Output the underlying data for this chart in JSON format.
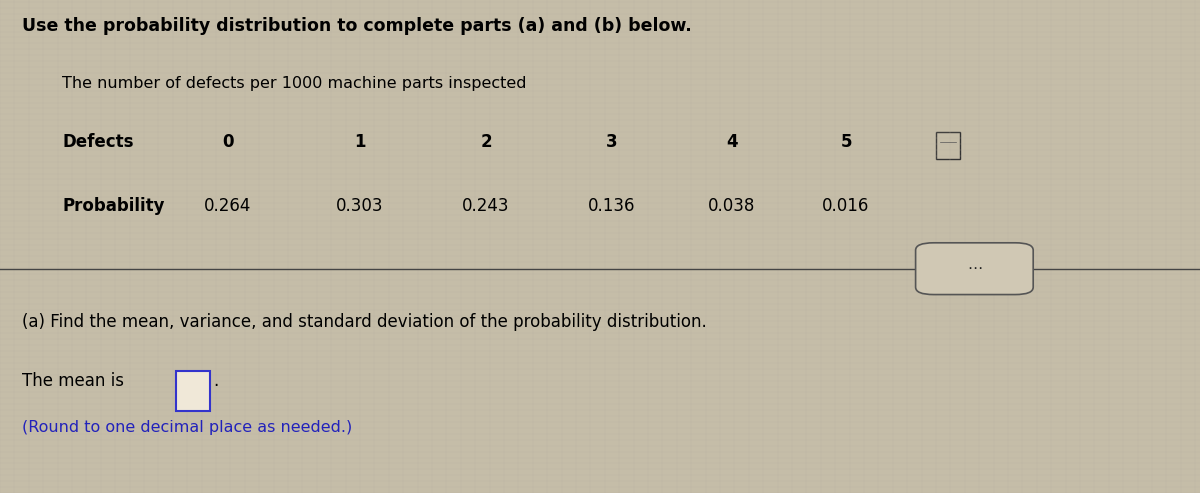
{
  "bg_color": "#c5bda8",
  "grid_color": "#b8b0a0",
  "header_text": "Use the probability distribution to complete parts (a) and (b) below.",
  "table_title": "The number of defects per 1000 machine parts inspected",
  "row1_label": "Defects",
  "row2_label": "Probability",
  "defects": [
    "0",
    "1",
    "2",
    "3",
    "4",
    "5"
  ],
  "probabilities": [
    "0.264",
    "0.303",
    "0.243",
    "0.136",
    "0.038",
    "0.016"
  ],
  "part_a_text": "(a) Find the mean, variance, and standard deviation of the probability distribution.",
  "mean_text": "The mean is",
  "round_text": "(Round to one decimal place as needed.)",
  "input_box_color": "#f0e8d8",
  "input_box_border": "#3333cc",
  "dots_btn_face": "#d0c8b4",
  "dots_btn_edge": "#555555",
  "blue_text_color": "#2222bb"
}
